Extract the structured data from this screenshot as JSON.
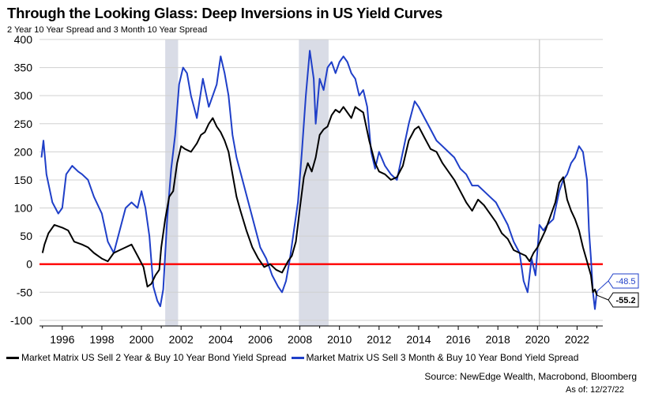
{
  "header": {
    "title": "Through the Looking Glass: Deep Inversions in US Yield Curves",
    "subtitle": "2 Year 10 Year Spread and 3 Month 10 Year Spread"
  },
  "footer": {
    "source": "Source: NewEdge Wealth, Macrobond, Bloomberg",
    "as_of": "As of: 12/27/22"
  },
  "colors": {
    "series_2y10y": "#000000",
    "series_3m10y": "#1f3fc8",
    "zero_line": "#ff0000",
    "recession": "#d9dce6",
    "grid": "#d0d0d0"
  },
  "chart_data": {
    "type": "line",
    "title": "Through the Looking Glass: Deep Inversions in US Yield Curves",
    "subtitle": "2 Year 10 Year Spread and 3 Month 10 Year Spread",
    "xlabel": "",
    "ylabel": "",
    "xlim": [
      1994.85,
      2023.3
    ],
    "ylim": [
      -110,
      400
    ],
    "y_ticks": [
      400,
      350,
      300,
      250,
      200,
      150,
      100,
      50,
      0,
      -50,
      -100
    ],
    "x_ticks": [
      "1996",
      "1998",
      "2000",
      "2002",
      "2004",
      "2006",
      "2008",
      "2010",
      "2012",
      "2014",
      "2016",
      "2018",
      "2020",
      "2022"
    ],
    "grid": true,
    "legend_position": "bottom",
    "zero_reference_line": 0,
    "recession_shading": [
      [
        2001.2,
        2001.85
      ],
      [
        2007.95,
        2009.45
      ]
    ],
    "vertical_marker": [
      2020.1
    ],
    "end_labels": [
      {
        "series": "Market Matrix US Sell 3 Month & Buy 10 Year Bond Yield Spread",
        "label": "-48.5",
        "value": -48.5
      },
      {
        "series": "Market Matrix US Sell 2 Year & Buy 10 Year Bond Yield Spread",
        "label": "-55.2",
        "value": -55.2
      }
    ],
    "series": [
      {
        "name": "Market Matrix US Sell 2 Year & Buy 10 Year Bond Yield Spread",
        "legend_label": "Market Matrix US Sell 2 Year & Buy 10 Year Bond Yield Spread",
        "color": "#000000",
        "x": [
          1995.0,
          1995.1,
          1995.3,
          1995.6,
          1996.0,
          1996.3,
          1996.6,
          1997.0,
          1997.3,
          1997.6,
          1998.0,
          1998.3,
          1998.6,
          1998.9,
          1999.2,
          1999.5,
          1999.8,
          2000.1,
          2000.3,
          2000.5,
          2000.7,
          2000.9,
          2001.0,
          2001.2,
          2001.4,
          2001.6,
          2001.8,
          2002.0,
          2002.2,
          2002.5,
          2002.8,
          2003.0,
          2003.2,
          2003.4,
          2003.6,
          2003.8,
          2004.0,
          2004.2,
          2004.4,
          2004.6,
          2004.8,
          2005.0,
          2005.3,
          2005.6,
          2005.9,
          2006.2,
          2006.5,
          2006.8,
          2007.1,
          2007.4,
          2007.6,
          2007.8,
          2008.0,
          2008.2,
          2008.4,
          2008.6,
          2008.8,
          2009.0,
          2009.2,
          2009.4,
          2009.6,
          2009.8,
          2010.0,
          2010.2,
          2010.4,
          2010.6,
          2010.8,
          2011.0,
          2011.2,
          2011.5,
          2011.8,
          2012.0,
          2012.3,
          2012.6,
          2012.9,
          2013.2,
          2013.5,
          2013.8,
          2014.0,
          2014.3,
          2014.6,
          2014.9,
          2015.2,
          2015.5,
          2015.8,
          2016.1,
          2016.4,
          2016.7,
          2017.0,
          2017.3,
          2017.6,
          2017.9,
          2018.2,
          2018.5,
          2018.8,
          2019.1,
          2019.4,
          2019.6,
          2019.8,
          2020.0,
          2020.2,
          2020.4,
          2020.6,
          2020.9,
          2021.1,
          2021.3,
          2021.5,
          2021.7,
          2021.9,
          2022.1,
          2022.3,
          2022.5,
          2022.7,
          2022.8,
          2022.9,
          2023.0
        ],
        "values": [
          20,
          35,
          55,
          70,
          65,
          60,
          40,
          35,
          30,
          20,
          10,
          5,
          20,
          25,
          30,
          35,
          15,
          -5,
          -40,
          -35,
          -20,
          -10,
          30,
          80,
          120,
          130,
          180,
          210,
          205,
          200,
          215,
          230,
          235,
          250,
          260,
          245,
          235,
          220,
          200,
          160,
          120,
          95,
          60,
          30,
          10,
          -5,
          0,
          -10,
          -15,
          5,
          15,
          40,
          100,
          155,
          180,
          165,
          190,
          230,
          240,
          245,
          265,
          275,
          270,
          280,
          270,
          260,
          280,
          275,
          270,
          220,
          180,
          165,
          160,
          150,
          155,
          175,
          220,
          240,
          245,
          225,
          205,
          200,
          180,
          165,
          150,
          130,
          110,
          95,
          115,
          105,
          90,
          75,
          55,
          45,
          25,
          20,
          15,
          5,
          20,
          30,
          45,
          60,
          80,
          110,
          145,
          155,
          115,
          95,
          80,
          60,
          30,
          5,
          -20,
          -50,
          -45,
          -55.2
        ]
      },
      {
        "name": "Market Matrix US Sell 3 Month & Buy 10 Year Bond Yield Spread",
        "legend_label": "Market Matrix US Sell 3 Month & Buy 10 Year Bond Yield Spread",
        "color": "#1f3fc8",
        "x": [
          1994.95,
          1995.05,
          1995.2,
          1995.5,
          1995.8,
          1996.0,
          1996.2,
          1996.5,
          1996.8,
          1997.0,
          1997.3,
          1997.6,
          1998.0,
          1998.3,
          1998.6,
          1998.9,
          1999.2,
          1999.5,
          1999.8,
          2000.0,
          2000.2,
          2000.4,
          2000.6,
          2000.8,
          2000.95,
          2001.1,
          2001.3,
          2001.5,
          2001.7,
          2001.9,
          2002.1,
          2002.3,
          2002.5,
          2002.8,
          2003.1,
          2003.4,
          2003.6,
          2003.8,
          2004.0,
          2004.2,
          2004.4,
          2004.6,
          2004.8,
          2005.1,
          2005.4,
          2005.7,
          2006.0,
          2006.3,
          2006.6,
          2006.9,
          2007.1,
          2007.3,
          2007.5,
          2007.7,
          2007.9,
          2008.1,
          2008.3,
          2008.5,
          2008.7,
          2008.8,
          2009.0,
          2009.2,
          2009.4,
          2009.6,
          2009.8,
          2010.0,
          2010.2,
          2010.4,
          2010.6,
          2010.8,
          2011.0,
          2011.2,
          2011.4,
          2011.6,
          2011.8,
          2012.0,
          2012.3,
          2012.6,
          2012.9,
          2013.2,
          2013.5,
          2013.8,
          2014.0,
          2014.3,
          2014.6,
          2014.9,
          2015.2,
          2015.5,
          2015.8,
          2016.1,
          2016.4,
          2016.7,
          2017.0,
          2017.3,
          2017.6,
          2017.9,
          2018.2,
          2018.5,
          2018.8,
          2019.1,
          2019.3,
          2019.5,
          2019.7,
          2019.9,
          2020.1,
          2020.3,
          2020.5,
          2020.8,
          2021.1,
          2021.3,
          2021.5,
          2021.7,
          2021.9,
          2022.1,
          2022.3,
          2022.5,
          2022.6,
          2022.7,
          2022.8,
          2022.9,
          2023.0
        ],
        "values": [
          190,
          220,
          160,
          110,
          90,
          100,
          160,
          175,
          165,
          160,
          150,
          120,
          90,
          40,
          20,
          60,
          100,
          110,
          100,
          130,
          100,
          50,
          -40,
          -65,
          -75,
          -45,
          80,
          170,
          230,
          320,
          350,
          340,
          300,
          260,
          330,
          280,
          300,
          320,
          370,
          340,
          300,
          230,
          190,
          150,
          110,
          70,
          30,
          10,
          -20,
          -40,
          -50,
          -30,
          10,
          60,
          110,
          200,
          300,
          380,
          330,
          250,
          330,
          310,
          350,
          360,
          340,
          360,
          370,
          360,
          340,
          330,
          300,
          310,
          280,
          200,
          170,
          200,
          175,
          160,
          150,
          200,
          250,
          290,
          280,
          260,
          240,
          220,
          210,
          200,
          190,
          170,
          160,
          140,
          140,
          130,
          120,
          110,
          90,
          70,
          40,
          20,
          -30,
          -50,
          10,
          -20,
          70,
          60,
          70,
          80,
          130,
          150,
          160,
          180,
          190,
          210,
          200,
          150,
          60,
          10,
          -50,
          -80,
          -48.5
        ]
      }
    ]
  }
}
